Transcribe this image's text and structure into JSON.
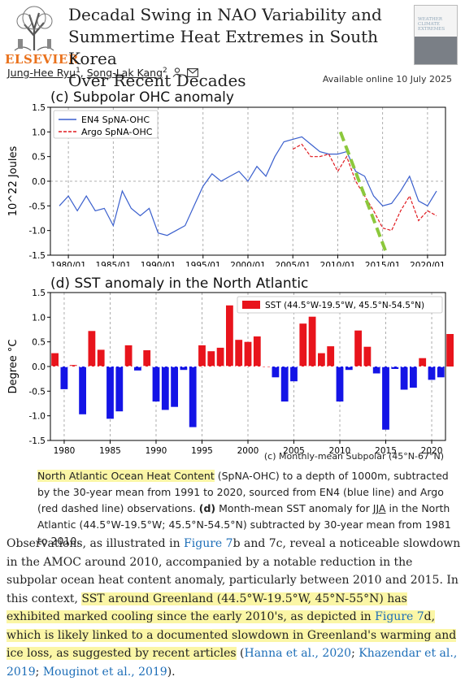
{
  "header": {
    "publisher": "ELSEVIER",
    "title_lines": [
      "Decadal Swing in NAO Variability and",
      "Summertime Heat Extremes in South Korea",
      "Over Recent Decades"
    ],
    "journal_cover_text": [
      "WEATHER",
      "CLIMATE",
      "EXTREMES"
    ],
    "author1": "Jung-Hee Ryu",
    "author1_sup": "1",
    "author2": "Song-Lak Kang",
    "author2_sup": "2",
    "available": "Available online 10 July 2025"
  },
  "chart_data": [
    {
      "type": "line",
      "title": "(c) Subpolar OHC anomaly",
      "ylabel": "10^22 Joules",
      "xlim": [
        1978,
        2022
      ],
      "ylim": [
        -1.5,
        1.5
      ],
      "xticks": [
        "1980/01",
        "1985/01",
        "1990/01",
        "1995/01",
        "2000/01",
        "2005/01",
        "2010/01",
        "2015/01",
        "2020/01"
      ],
      "yticks": [
        "1.5",
        "1.0",
        "0.5",
        "0.0",
        "-0.5",
        "-1.0",
        "-1.5"
      ],
      "legend": [
        "EN4 SpNA-OHC",
        "Argo SpNA-OHC"
      ],
      "legend_position": "top-left",
      "colors": {
        "en4": "#3a5fcd",
        "argo": "#e0191f",
        "trend": "#8cc83c"
      },
      "series": [
        {
          "name": "EN4 SpNA-OHC",
          "x": [
            1979,
            1980,
            1981,
            1982,
            1983,
            1984,
            1985,
            1986,
            1987,
            1988,
            1989,
            1990,
            1991,
            1992,
            1993,
            1994,
            1995,
            1996,
            1997,
            1998,
            1999,
            2000,
            2001,
            2002,
            2003,
            2004,
            2005,
            2006,
            2007,
            2008,
            2009,
            2010,
            2011,
            2012,
            2013,
            2014,
            2015,
            2016,
            2017,
            2018,
            2019,
            2020,
            2021
          ],
          "y": [
            -0.5,
            -0.3,
            -0.6,
            -0.3,
            -0.6,
            -0.55,
            -0.9,
            -0.2,
            -0.55,
            -0.7,
            -0.55,
            -1.05,
            -1.1,
            -1.0,
            -0.9,
            -0.5,
            -0.1,
            0.15,
            0.0,
            0.1,
            0.2,
            0.0,
            0.3,
            0.1,
            0.5,
            0.8,
            0.85,
            0.9,
            0.75,
            0.6,
            0.55,
            0.55,
            0.6,
            0.2,
            0.1,
            -0.3,
            -0.5,
            -0.45,
            -0.2,
            0.1,
            -0.4,
            -0.5,
            -0.2
          ]
        },
        {
          "name": "Argo SpNA-OHC",
          "x": [
            2005,
            2006,
            2007,
            2008,
            2009,
            2010,
            2011,
            2012,
            2013,
            2014,
            2015,
            2016,
            2017,
            2018,
            2019,
            2020,
            2021
          ],
          "y": [
            0.65,
            0.75,
            0.5,
            0.5,
            0.55,
            0.2,
            0.5,
            0.0,
            -0.3,
            -0.6,
            -0.95,
            -1.0,
            -0.6,
            -0.3,
            -0.8,
            -0.6,
            -0.7
          ]
        }
      ],
      "trend": {
        "x": [
          2010.3,
          2015.5
        ],
        "y": [
          1.0,
          -1.5
        ]
      }
    },
    {
      "type": "bar",
      "title": "(d) SST anomaly in the North Atlantic",
      "ylabel": "Degree °C",
      "xlim": [
        1978.5,
        2021.5
      ],
      "ylim": [
        -1.5,
        1.5
      ],
      "xticks": [
        "1980",
        "1985",
        "1990",
        "1995",
        "2000",
        "2005",
        "2010",
        "2015",
        "2020"
      ],
      "yticks": [
        "1.5",
        "1.0",
        "0.5",
        "0.0",
        "-0.5",
        "-1.0",
        "-1.5"
      ],
      "legend": "SST (44.5°W-19.5°W, 45.5°N-54.5°N)",
      "legend_position": "top-right",
      "colors": {
        "positive": "#e8141c",
        "negative": "#1414e6"
      },
      "years": [
        1979,
        1980,
        1981,
        1982,
        1983,
        1984,
        1985,
        1986,
        1987,
        1988,
        1989,
        1990,
        1991,
        1992,
        1993,
        1994,
        1995,
        1996,
        1997,
        1998,
        1999,
        2000,
        2001,
        2002,
        2003,
        2004,
        2005,
        2006,
        2007,
        2008,
        2009,
        2010,
        2011,
        2012,
        2013,
        2014,
        2015,
        2016,
        2017,
        2018,
        2019,
        2020,
        2021,
        2022
      ],
      "values": [
        0.27,
        -0.46,
        0.03,
        -0.97,
        0.72,
        0.34,
        -1.06,
        -0.91,
        0.43,
        -0.08,
        0.33,
        -0.71,
        -0.88,
        -0.82,
        -0.07,
        -1.23,
        0.43,
        0.31,
        0.38,
        1.24,
        0.54,
        0.5,
        0.61,
        0.0,
        -0.22,
        -0.71,
        -0.3,
        0.87,
        1.01,
        0.27,
        0.41,
        -0.71,
        -0.07,
        0.73,
        0.4,
        -0.14,
        -1.28,
        -0.05,
        -0.47,
        -0.43,
        0.17,
        -0.27,
        -0.22,
        0.66
      ]
    }
  ],
  "caption": {
    "overflow": "(c) Monthly-mean Subpolar (45°N-67°N)",
    "part1": "North Atlantic Ocean Heat Content",
    "part2": " (SpNA-OHC) to a depth of 1000m, subtracted by the 30-year mean from 1991 to 2020, sourced from EN4 (blue line) and Argo (red dashed line) observations. ",
    "part3": "(d)",
    "part4": " Month-mean SST anomaly for ",
    "part5": "JJA",
    "part6": " in the North Atlantic (44.5°W-19.5°W; 45.5°N-54.5°N) subtracted by 30-year mean from 1981 to 2010."
  },
  "body": {
    "t1": "Observations, as illustrated in ",
    "l1": "Figure 7",
    "t2": "b and 7c, reveal a noticeable slowdown in the AMOC around 2010, accompanied by a notable reduction in the subpolar ocean heat content anomaly, particularly between 2010 and 2015. In this context, ",
    "h1": "SST around Greenland (44.5°W-19.5°W, 45°N-55°N) has exhibited marked cooling since the early 2010's, as depicted in ",
    "l2": "Figure 7",
    "h2": "d, which is likely linked to a documented slowdown in Greenland's warming and ice loss, as suggested by recent articles",
    "t3": " (",
    "l3": "Hanna et al., 2020",
    "t4": "; ",
    "l4": "Khazendar et al., 2019",
    "t5": "; ",
    "l5": "Mouginot et al., 2019",
    "t6": ")."
  }
}
